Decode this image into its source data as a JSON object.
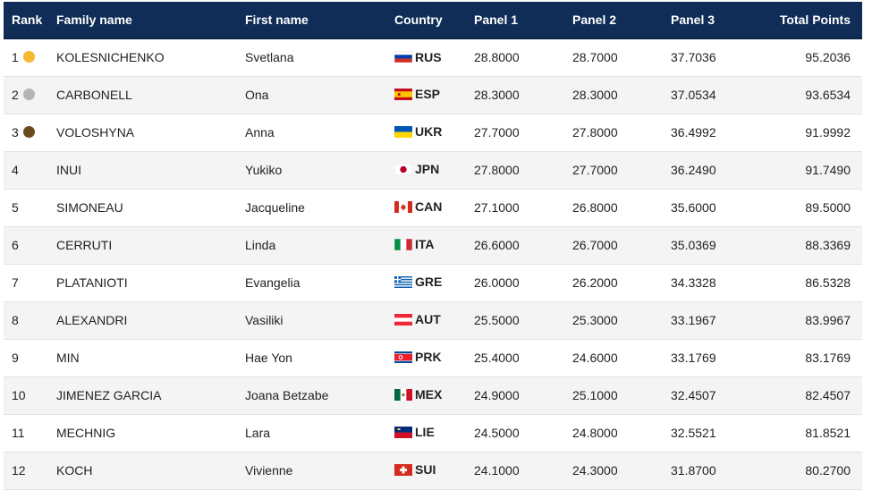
{
  "table": {
    "headers": {
      "rank": "Rank",
      "family_name": "Family name",
      "first_name": "First name",
      "country": "Country",
      "panel1": "Panel 1",
      "panel2": "Panel 2",
      "panel3": "Panel 3",
      "total": "Total Points"
    },
    "rows": [
      {
        "rank": "1",
        "medal": "gold",
        "family_name": "KOLESNICHENKO",
        "first_name": "Svetlana",
        "flag": "russia-flag",
        "country": "RUS",
        "panel1": "28.8000",
        "panel2": "28.7000",
        "panel3": "37.7036",
        "total": "95.2036"
      },
      {
        "rank": "2",
        "medal": "silver",
        "family_name": "CARBONELL",
        "first_name": "Ona",
        "flag": "spain-flag",
        "country": "ESP",
        "panel1": "28.3000",
        "panel2": "28.3000",
        "panel3": "37.0534",
        "total": "93.6534"
      },
      {
        "rank": "3",
        "medal": "bronze",
        "family_name": "VOLOSHYNA",
        "first_name": "Anna",
        "flag": "ukraine-flag",
        "country": "UKR",
        "panel1": "27.7000",
        "panel2": "27.8000",
        "panel3": "36.4992",
        "total": "91.9992"
      },
      {
        "rank": "4",
        "medal": "",
        "family_name": "INUI",
        "first_name": "Yukiko",
        "flag": "japan-flag",
        "country": "JPN",
        "panel1": "27.8000",
        "panel2": "27.7000",
        "panel3": "36.2490",
        "total": "91.7490"
      },
      {
        "rank": "5",
        "medal": "",
        "family_name": "SIMONEAU",
        "first_name": "Jacqueline",
        "flag": "canada-flag",
        "country": "CAN",
        "panel1": "27.1000",
        "panel2": "26.8000",
        "panel3": "35.6000",
        "total": "89.5000"
      },
      {
        "rank": "6",
        "medal": "",
        "family_name": "CERRUTI",
        "first_name": "Linda",
        "flag": "italy-flag",
        "country": "ITA",
        "panel1": "26.6000",
        "panel2": "26.7000",
        "panel3": "35.0369",
        "total": "88.3369"
      },
      {
        "rank": "7",
        "medal": "",
        "family_name": "PLATANIOTI",
        "first_name": "Evangelia",
        "flag": "greece-flag",
        "country": "GRE",
        "panel1": "26.0000",
        "panel2": "26.2000",
        "panel3": "34.3328",
        "total": "86.5328"
      },
      {
        "rank": "8",
        "medal": "",
        "family_name": "ALEXANDRI",
        "first_name": "Vasiliki",
        "flag": "austria-flag",
        "country": "AUT",
        "panel1": "25.5000",
        "panel2": "25.3000",
        "panel3": "33.1967",
        "total": "83.9967"
      },
      {
        "rank": "9",
        "medal": "",
        "family_name": "MIN",
        "first_name": "Hae Yon",
        "flag": "north-korea-flag",
        "country": "PRK",
        "panel1": "25.4000",
        "panel2": "24.6000",
        "panel3": "33.1769",
        "total": "83.1769"
      },
      {
        "rank": "10",
        "medal": "",
        "family_name": "JIMENEZ GARCIA",
        "first_name": "Joana Betzabe",
        "flag": "mexico-flag",
        "country": "MEX",
        "panel1": "24.9000",
        "panel2": "25.1000",
        "panel3": "32.4507",
        "total": "82.4507"
      },
      {
        "rank": "11",
        "medal": "",
        "family_name": "MECHNIG",
        "first_name": "Lara",
        "flag": "liechtenstein-flag",
        "country": "LIE",
        "panel1": "24.5000",
        "panel2": "24.8000",
        "panel3": "32.5521",
        "total": "81.8521"
      },
      {
        "rank": "12",
        "medal": "",
        "family_name": "KOCH",
        "first_name": "Vivienne",
        "flag": "switzerland-flag",
        "country": "SUI",
        "panel1": "24.1000",
        "panel2": "24.3000",
        "panel3": "31.8700",
        "total": "80.2700"
      }
    ]
  },
  "colors": {
    "header_bg": "#0f2d57",
    "header_text": "#ffffff",
    "row_alt_bg": "#f4f4f4",
    "gold": "#f5b82e",
    "silver": "#b5b5b5",
    "bronze": "#6b4a1e"
  }
}
